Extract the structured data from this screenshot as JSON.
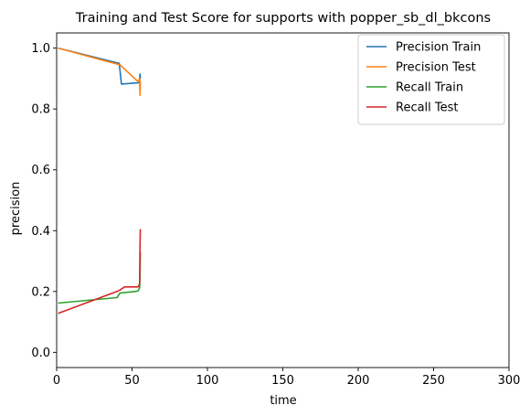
{
  "chart_data": {
    "type": "line",
    "title": "Training and Test Score for supports with popper_sb_dl_bkcons",
    "xlabel": "time",
    "ylabel": "precision",
    "xlim": [
      0,
      300
    ],
    "ylim": [
      -0.05,
      1.05
    ],
    "xticks": [
      "0",
      "50",
      "100",
      "150",
      "200",
      "250",
      "300"
    ],
    "yticks": [
      "0.0",
      "0.2",
      "0.4",
      "0.6",
      "0.8",
      "1.0"
    ],
    "grid": false,
    "legend_position": "top-right",
    "series": [
      {
        "name": "Precision Train",
        "color": "#1f77b4",
        "x": [
          1,
          41.5,
          43,
          54,
          55,
          55.3,
          55.5
        ],
        "y": [
          1.0,
          0.95,
          0.882,
          0.886,
          0.89,
          0.915,
          0.9
        ]
      },
      {
        "name": "Precision Test",
        "color": "#ff7f0e",
        "x": [
          1,
          42,
          54,
          55,
          55.3,
          55.5
        ],
        "y": [
          1.0,
          0.945,
          0.89,
          0.9,
          0.845,
          0.89
        ]
      },
      {
        "name": "Recall Train",
        "color": "#2ca02c",
        "x": [
          1,
          40,
          42,
          52,
          54,
          55,
          55.3,
          55.5
        ],
        "y": [
          0.162,
          0.18,
          0.195,
          0.2,
          0.202,
          0.212,
          0.25,
          0.33
        ]
      },
      {
        "name": "Recall Test",
        "color": "#d62728",
        "x": [
          1,
          40,
          42,
          45,
          52,
          54,
          55,
          55.3,
          55.5
        ],
        "y": [
          0.128,
          0.2,
          0.205,
          0.215,
          0.215,
          0.215,
          0.225,
          0.35,
          0.405
        ]
      }
    ]
  }
}
